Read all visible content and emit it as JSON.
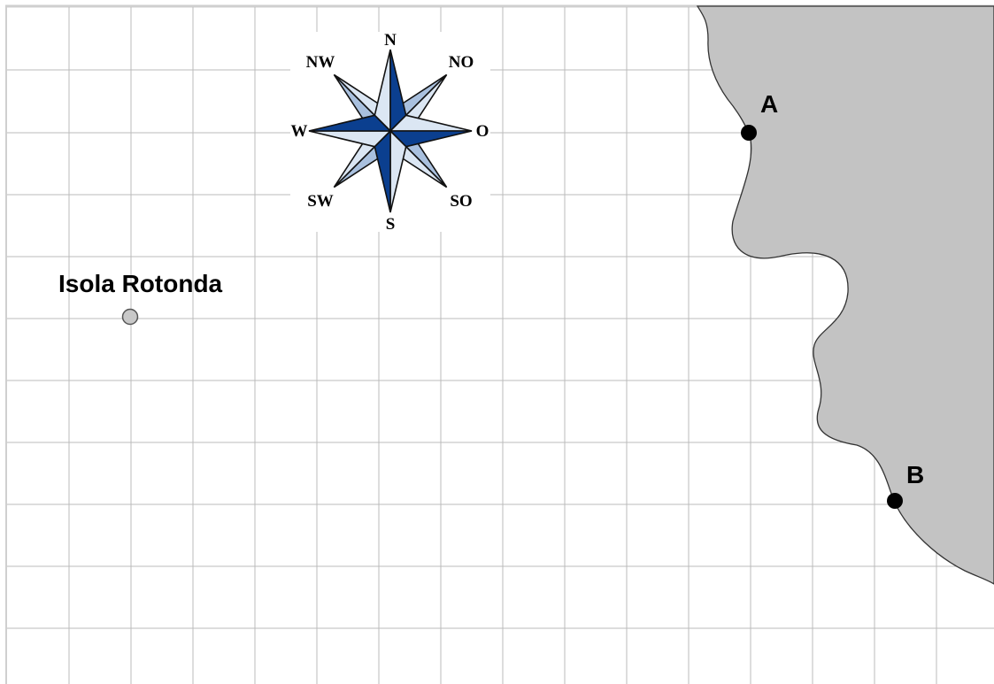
{
  "map": {
    "island": {
      "label": "Isola Rotonda"
    },
    "points": [
      {
        "id": "A",
        "label": "A"
      },
      {
        "id": "B",
        "label": "B"
      }
    ]
  },
  "compass": {
    "north": "N",
    "northeast": "NO",
    "east": "O",
    "southeast": "SO",
    "south": "S",
    "southwest": "SW",
    "west": "W",
    "northwest": "NW"
  },
  "colors": {
    "land": "#c3c3c3",
    "grid": "#bbbbbb",
    "compass_dark": "#0b3f8f",
    "compass_light": "#a9c0de",
    "compass_pale": "#dbe6f3"
  }
}
